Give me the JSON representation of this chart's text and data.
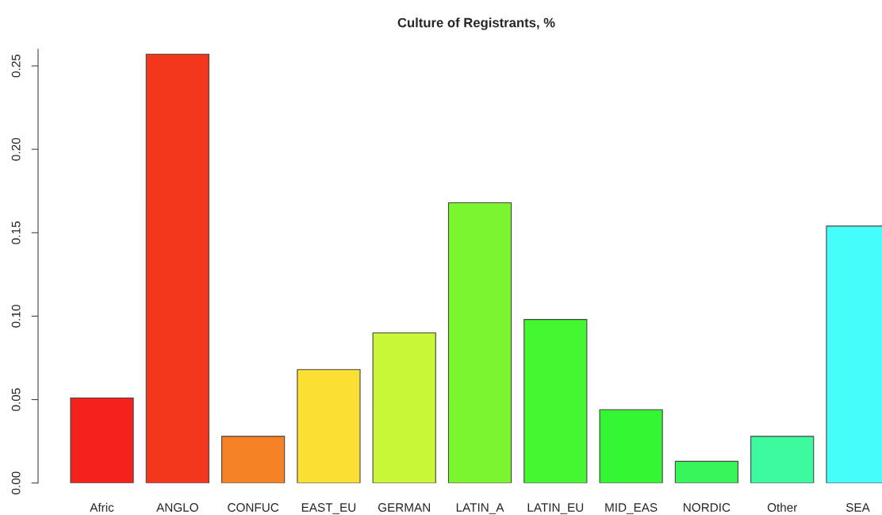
{
  "chart_data": {
    "type": "bar",
    "title": "Culture of Registrants, %",
    "categories": [
      "Afric",
      "ANGLO",
      "CONFUC",
      "EAST_EU",
      "GERMAN",
      "LATIN_A",
      "LATIN_EU",
      "MID_EAS",
      "NORDIC",
      "Other",
      "SEA"
    ],
    "values": [
      0.051,
      0.257,
      0.028,
      0.068,
      0.09,
      0.168,
      0.098,
      0.044,
      0.013,
      0.028,
      0.154
    ],
    "colors": [
      "#f5221c",
      "#f3371c",
      "#f58325",
      "#fbe033",
      "#c8f737",
      "#7af62e",
      "#44f731",
      "#33f533",
      "#36f55a",
      "#3dfa9f",
      "#45fefc"
    ],
    "ylim": [
      0,
      0.26
    ],
    "yticks": [
      {
        "value": 0,
        "label": "0.00"
      },
      {
        "value": 0.05,
        "label": "0.05"
      },
      {
        "value": 0.1,
        "label": "0.10"
      },
      {
        "value": 0.15,
        "label": "0.15"
      },
      {
        "value": 0.2,
        "label": "0.20"
      },
      {
        "value": 0.25,
        "label": "0.25"
      }
    ],
    "grid": false,
    "legend": false
  }
}
